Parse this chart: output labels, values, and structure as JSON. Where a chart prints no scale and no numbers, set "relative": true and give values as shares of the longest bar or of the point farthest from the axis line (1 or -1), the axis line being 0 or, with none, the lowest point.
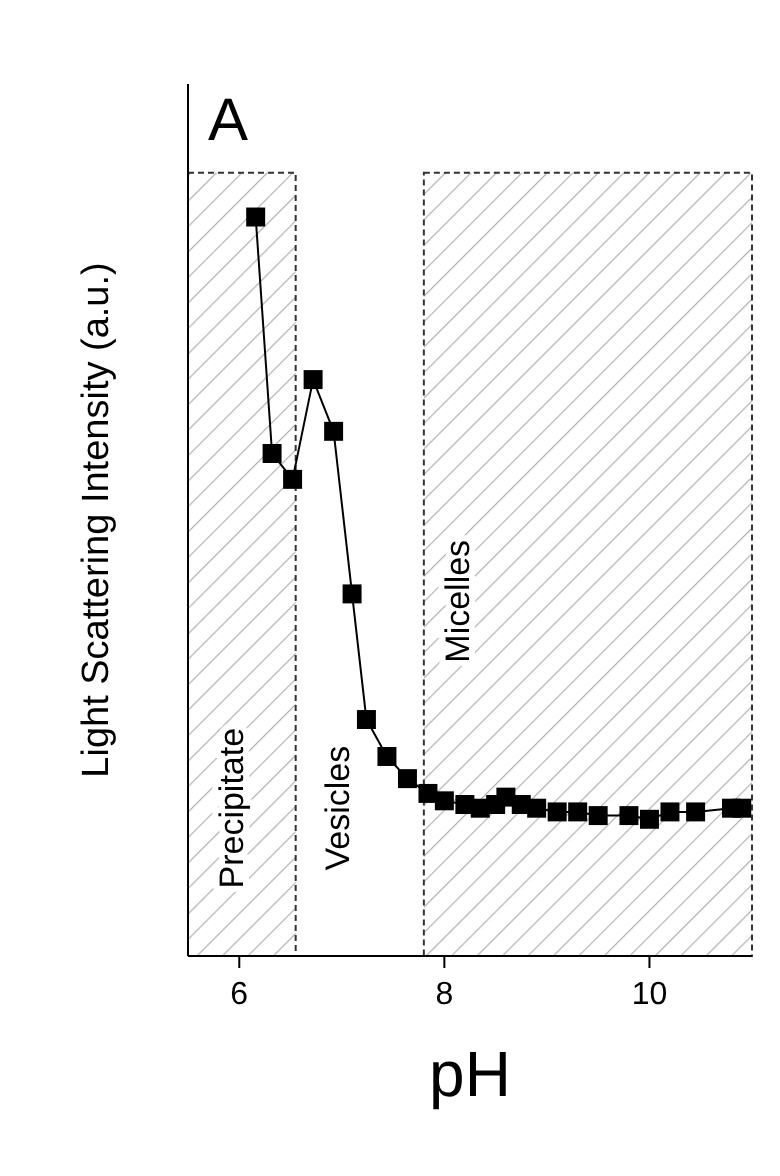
{
  "chart_data": {
    "type": "line",
    "title": "A",
    "xlabel": "pH",
    "ylabel": "Light Scattering Intensity (a.u.)",
    "relative": true,
    "marker": "square",
    "line_style": "solid",
    "grid": false,
    "xlim": [
      5.5,
      11
    ],
    "xticks": [
      6,
      8,
      10
    ],
    "series": [
      {
        "color": "#000000",
        "x": [
          6.16,
          6.32,
          6.52,
          6.72,
          6.92,
          7.1,
          7.24,
          7.44,
          7.64,
          7.84,
          8.0,
          8.2,
          8.35,
          8.5,
          8.6,
          8.75,
          8.9,
          9.1,
          9.3,
          9.5,
          9.8,
          10.0,
          10.2,
          10.45,
          10.8,
          10.9
        ],
        "values": [
          1,
          0.68,
          0.645,
          0.78,
          0.71,
          0.49,
          0.32,
          0.27,
          0.24,
          0.22,
          0.21,
          0.205,
          0.2,
          0.205,
          0.215,
          0.205,
          0.2,
          0.195,
          0.195,
          0.19,
          0.19,
          0.185,
          0.195,
          0.195,
          0.2,
          0.2
        ]
      }
    ],
    "bands": [
      {
        "axis": "x",
        "from": 5.5,
        "to": 6.55,
        "label": "Precipitate",
        "color": "#333333"
      },
      {
        "axis": "x",
        "from": 7.8,
        "to": 11,
        "label": "Micelles",
        "color": "#333333"
      }
    ],
    "annotations": [
      "Vesicles"
    ]
  }
}
